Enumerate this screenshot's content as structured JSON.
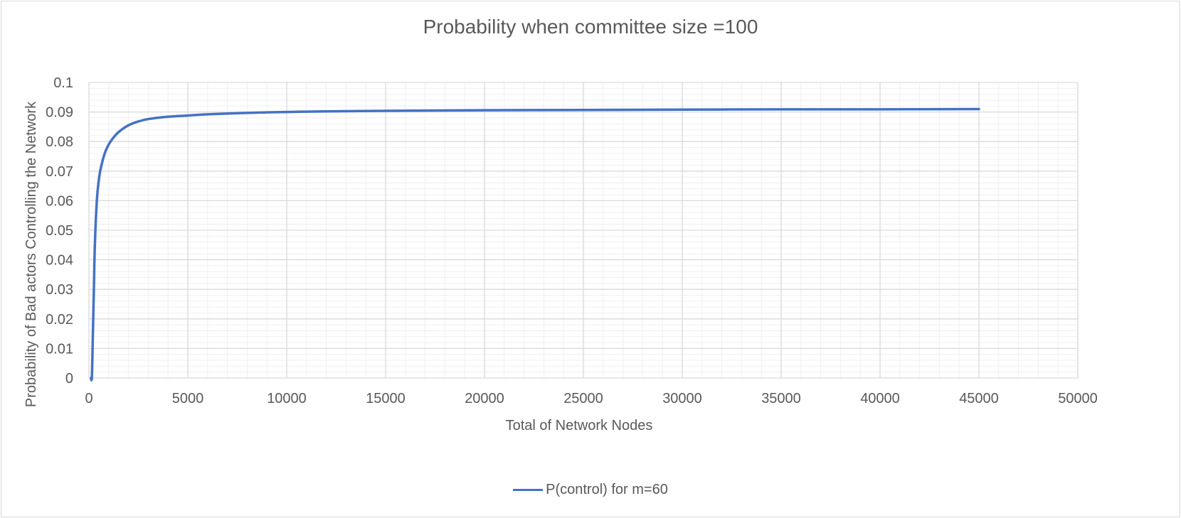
{
  "chart_data": {
    "type": "line",
    "title": "Probability when committee size =100",
    "xlabel": "Total of Network Nodes",
    "ylabel": "Probability of Bad actors Controlling the Network",
    "xlim": [
      0,
      50000
    ],
    "ylim": [
      0,
      0.1
    ],
    "x_ticks": [
      "0",
      "5000",
      "10000",
      "15000",
      "20000",
      "25000",
      "30000",
      "35000",
      "40000",
      "45000",
      "50000"
    ],
    "y_ticks": [
      "0",
      "0.01",
      "0.02",
      "0.03",
      "0.04",
      "0.05",
      "0.06",
      "0.07",
      "0.08",
      "0.09",
      "0.1"
    ],
    "grid": true,
    "legend": "bottom",
    "series": [
      {
        "name": "P(control) for m=60",
        "color": "#4472c4",
        "x": [
          100,
          150,
          200,
          250,
          300,
          400,
          500,
          600,
          800,
          1000,
          1200,
          1500,
          2000,
          2500,
          3000,
          4000,
          5000,
          6000,
          8000,
          10000,
          12000,
          15000,
          20000,
          25000,
          30000,
          35000,
          40000,
          45000
        ],
        "y": [
          0,
          0.0005,
          0.015,
          0.03,
          0.045,
          0.06,
          0.067,
          0.071,
          0.076,
          0.079,
          0.081,
          0.0832,
          0.0855,
          0.0868,
          0.0876,
          0.0884,
          0.0888,
          0.0892,
          0.0897,
          0.09,
          0.0902,
          0.0904,
          0.0906,
          0.0907,
          0.0908,
          0.0909,
          0.0909,
          0.091
        ]
      }
    ]
  }
}
